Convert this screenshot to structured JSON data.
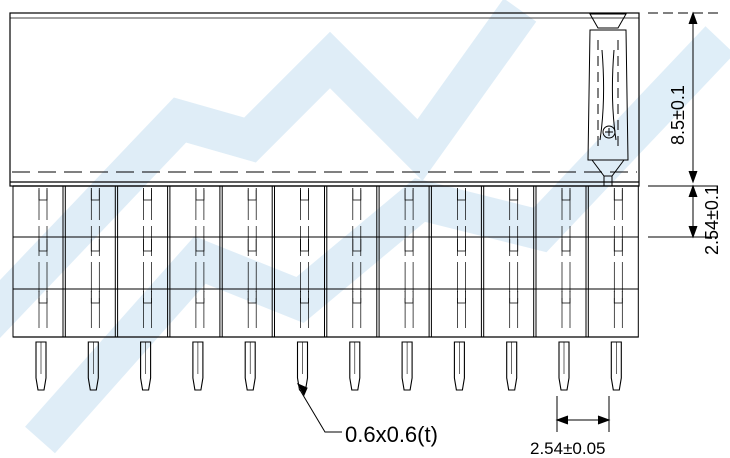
{
  "watermark": {
    "color": "#dcecf7"
  },
  "dimensions": {
    "body_height": "8.5±0.1",
    "row_pitch": "2.54±0.1",
    "pin_pitch": "2.54±0.05",
    "pin_size": "0.6x0.6(t)"
  },
  "connector": {
    "pin_count": 12,
    "row_count": 3,
    "line_color": "#000000"
  }
}
